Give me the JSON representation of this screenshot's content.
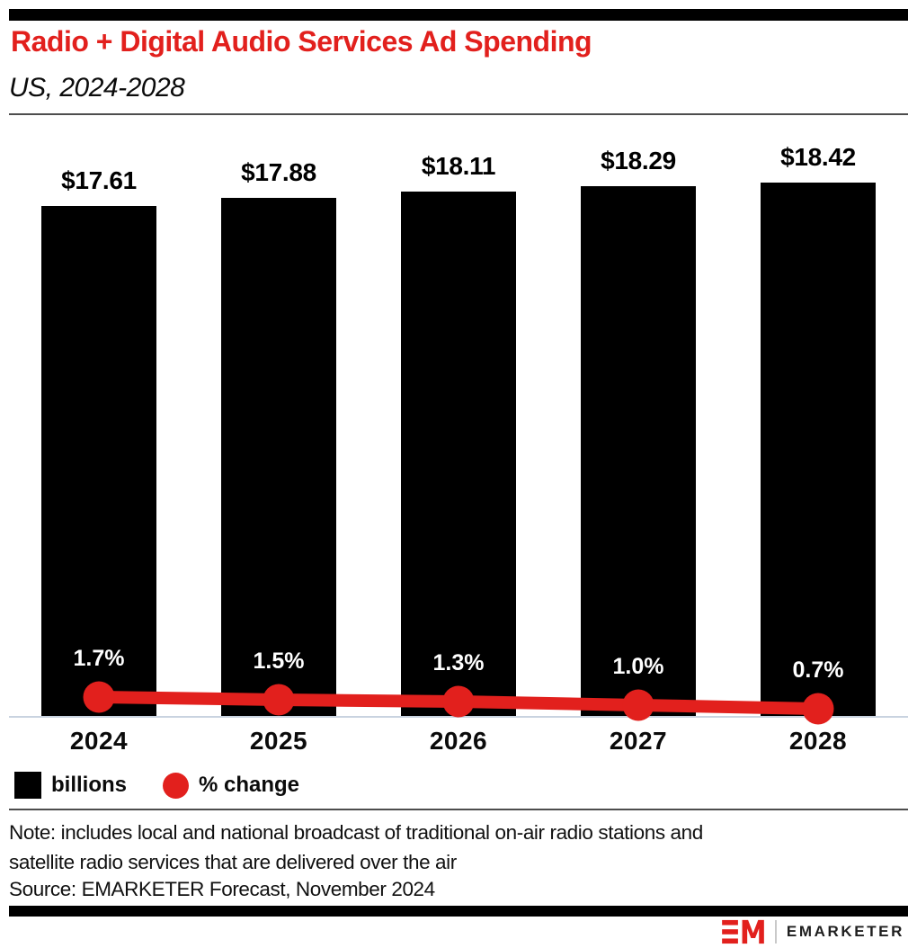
{
  "page": {
    "title": "Radio + Digital Audio Services Ad Spending",
    "subtitle": "US, 2024-2028",
    "note_lines": [
      "Note: includes local and national broadcast of traditional on-air radio stations and",
      "satellite radio services that are delivered over the air"
    ],
    "source": "Source: EMARKETER Forecast, November 2024",
    "brand": {
      "logo_text": "EMARKETER"
    }
  },
  "colors": {
    "accent_red": "#e2201d",
    "bar_black": "#000000",
    "axis_line": "#c9d3e0",
    "divider_gray": "#4d4d4d",
    "pct_label_white": "#ffffff"
  },
  "legend": [
    {
      "swatch": "black-square",
      "label": "billions"
    },
    {
      "swatch": "red-circle",
      "label": "% change"
    }
  ],
  "chart_data": {
    "type": "bar",
    "title": "Radio + Digital Audio Services Ad Spending",
    "subtitle": "US, 2024-2028",
    "categories": [
      "2024",
      "2025",
      "2026",
      "2027",
      "2028"
    ],
    "series": [
      {
        "name": "billions",
        "type": "bar",
        "color": "#000000",
        "values": [
          17.61,
          17.88,
          18.11,
          18.29,
          18.42
        ],
        "labels": [
          "$17.61",
          "$17.88",
          "$18.11",
          "$18.29",
          "$18.42"
        ]
      },
      {
        "name": "% change",
        "type": "line",
        "color": "#e2201d",
        "values": [
          1.7,
          1.5,
          1.3,
          1.0,
          0.7
        ],
        "labels": [
          "1.7%",
          "1.5%",
          "1.3%",
          "1.0%",
          "0.7%"
        ]
      }
    ],
    "xlabel": "",
    "ylabel": "",
    "units": "billions of US dollars",
    "value_prefix": "$",
    "grid": false,
    "legend_position": "bottom-left",
    "bar_axis_range": [
      0,
      18.42
    ],
    "line_axis_range": [
      0,
      1.7
    ]
  }
}
